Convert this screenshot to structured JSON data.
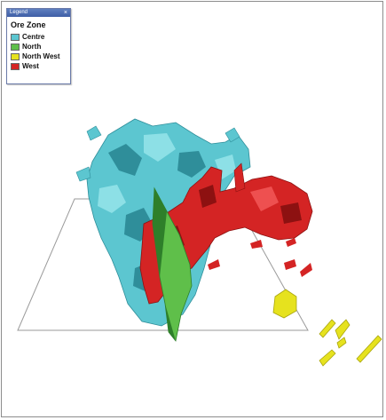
{
  "legend": {
    "window_title": "Legend",
    "close_glyph": "×",
    "heading": "Ore Zone",
    "items": [
      {
        "label": "Centre",
        "color": "#5cc6d0"
      },
      {
        "label": "North",
        "color": "#5fbf4a"
      },
      {
        "label": "North West",
        "color": "#e6e21e"
      },
      {
        "label": "West",
        "color": "#d42424"
      }
    ]
  },
  "colors": {
    "centre_shadow": "#2f8e9a",
    "centre_light": "#8de0e6",
    "north_shadow": "#2e7f2a",
    "northwest_shadow": "#a9a50f",
    "west_shadow": "#8d1111",
    "frame_line": "#9a9a9a"
  }
}
